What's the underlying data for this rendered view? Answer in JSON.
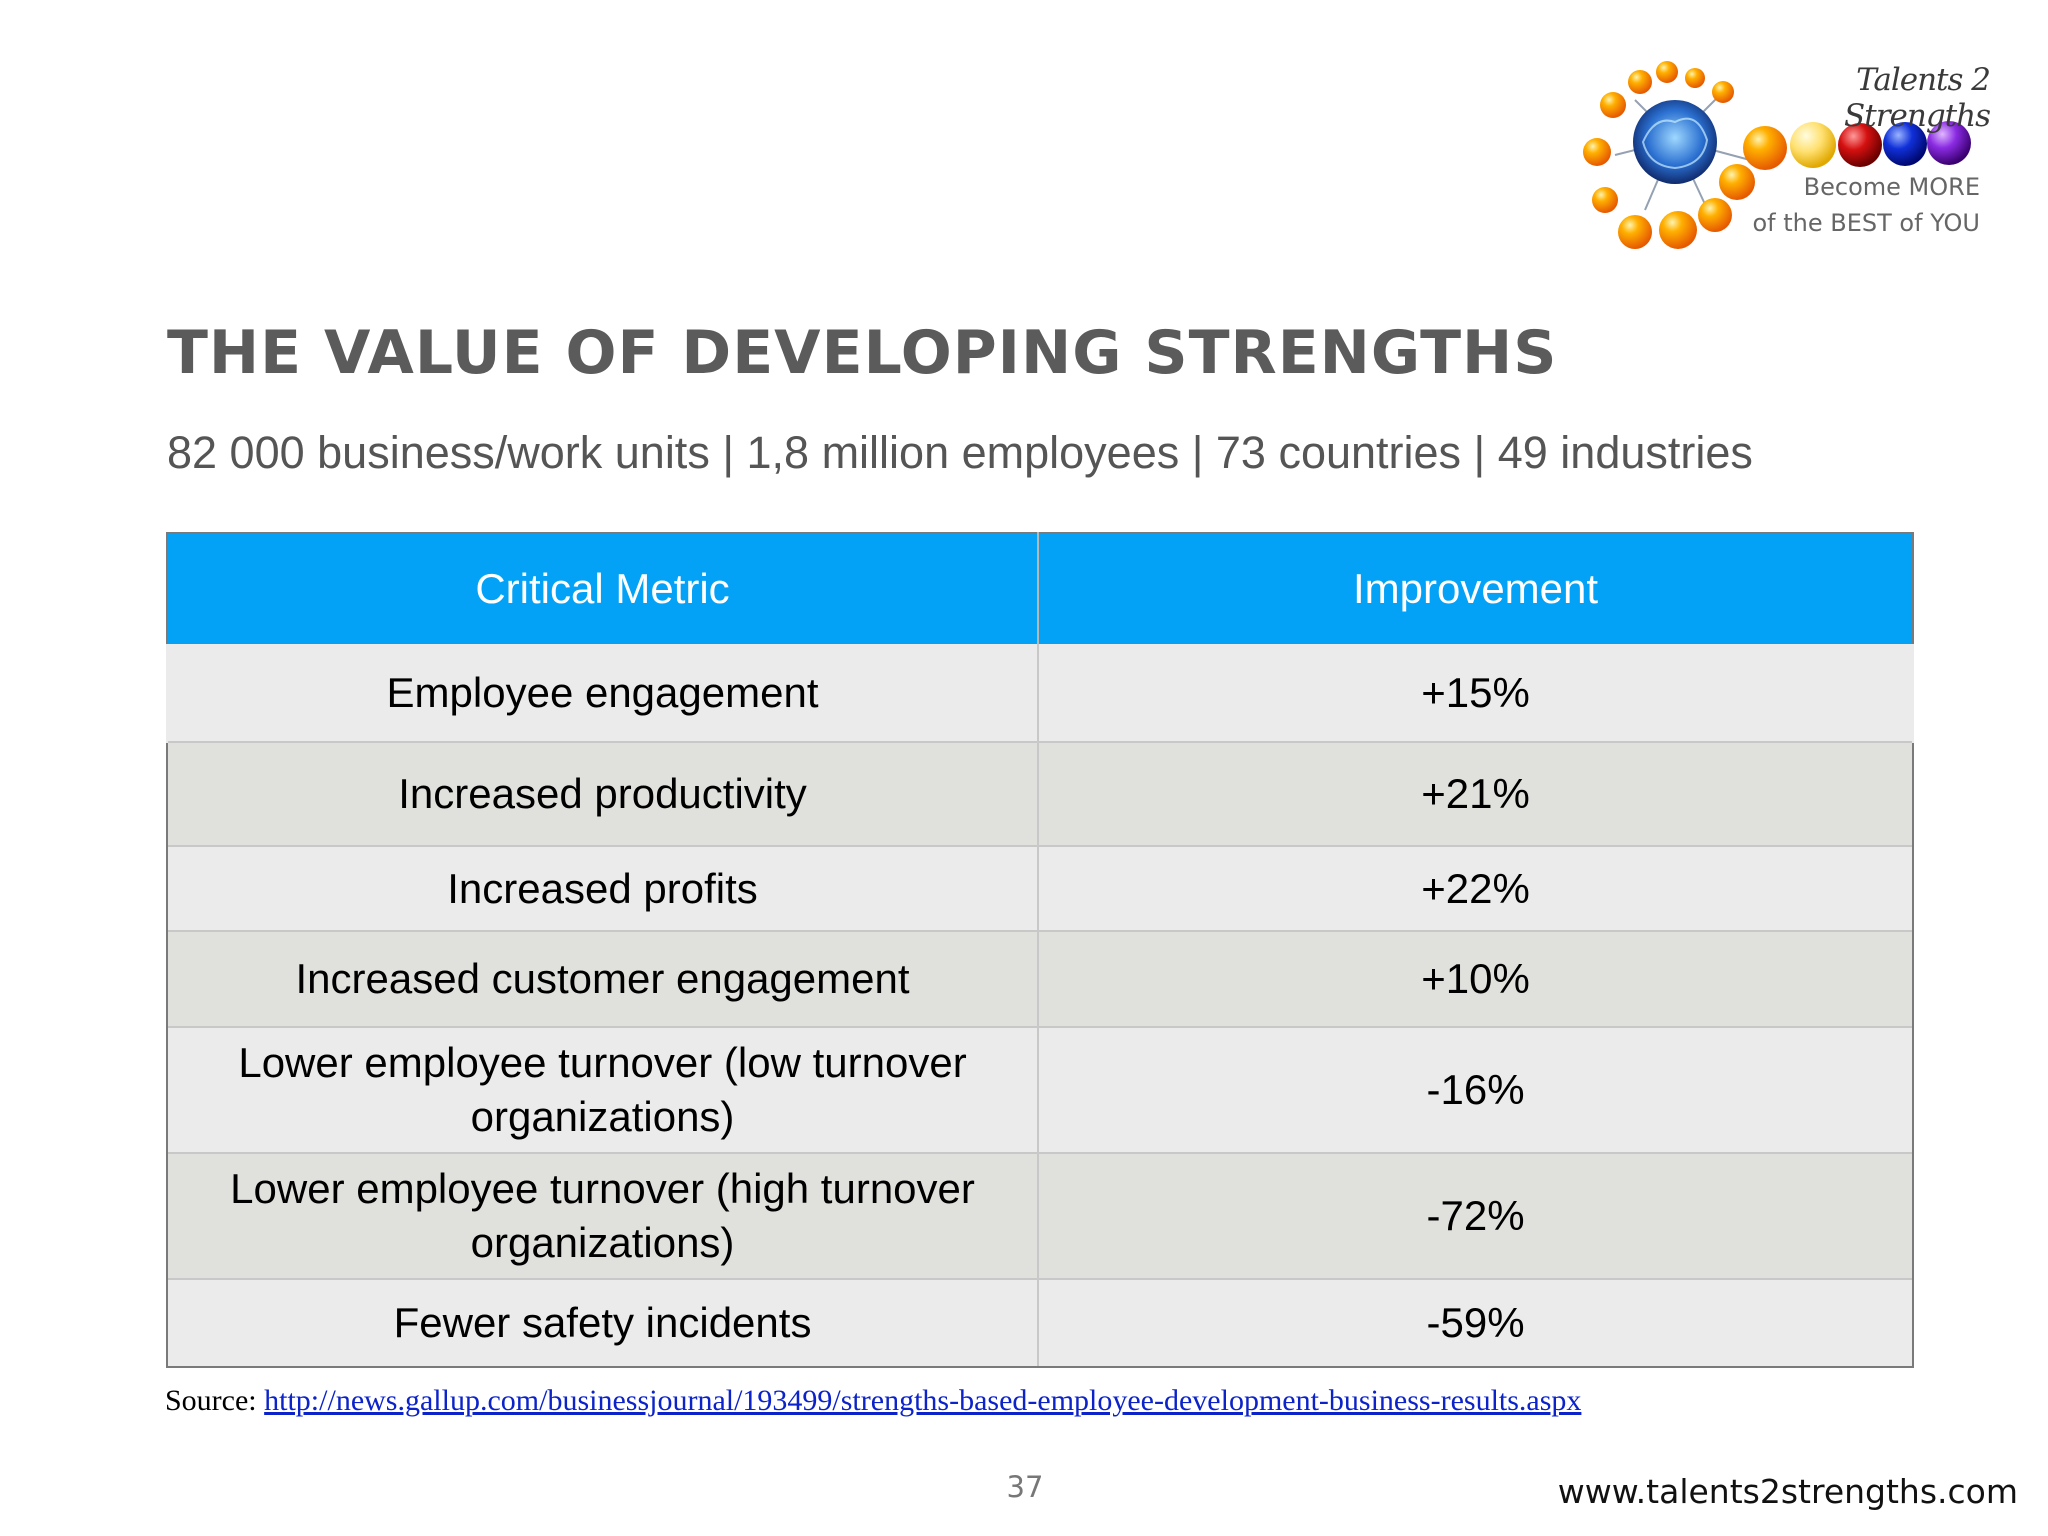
{
  "logo": {
    "title": "Talents 2 Strengths",
    "tagline_line1": "Become MORE",
    "tagline_line2": "of the BEST of YOU"
  },
  "slide": {
    "title": "THE VALUE OF DEVELOPING STRENGTHS",
    "subtitle": "82 000 business/work units | 1,8 million employees | 73 countries | 49 industries"
  },
  "table": {
    "headers": [
      "Critical Metric",
      "Improvement"
    ],
    "rows": [
      {
        "metric": "Employee engagement",
        "improvement": "+15%"
      },
      {
        "metric": "Increased productivity",
        "improvement": "+21%"
      },
      {
        "metric": "Increased profits",
        "improvement": "+22%"
      },
      {
        "metric": "Increased customer engagement",
        "improvement": "+10%"
      },
      {
        "metric": "Lower employee turnover (low turnover organizations)",
        "improvement": "-16%"
      },
      {
        "metric": "Lower employee turnover (high turnover organizations)",
        "improvement": "-72%"
      },
      {
        "metric": "Fewer safety incidents",
        "improvement": "-59%"
      }
    ]
  },
  "source": {
    "label": "Source: ",
    "link_text": "http://news.gallup.com/businessjournal/193499/strengths-based-employee-development-business-results.aspx"
  },
  "footer": {
    "page_number": "37",
    "website": "www.talents2strengths.com"
  },
  "colors": {
    "header_blue": "#03a2f7",
    "title_gray": "#5b5b5b",
    "row_light": "#ebebeb",
    "row_dark": "#e0e0dc",
    "link_blue": "#0b23c9"
  },
  "icons": [
    "brain-molecule-logo-icon"
  ]
}
